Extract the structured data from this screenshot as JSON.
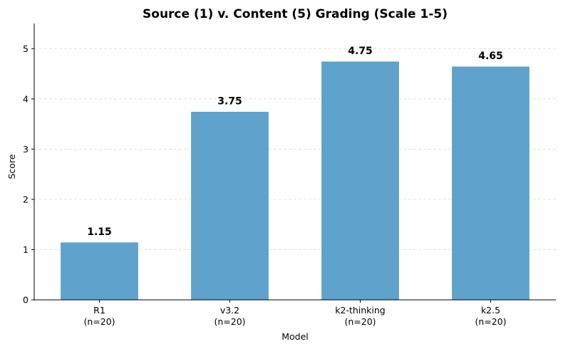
{
  "chart_data": {
    "type": "bar",
    "title": "Source (1) v. Content (5) Grading (Scale 1-5)",
    "xlabel": "Model",
    "ylabel": "Score",
    "categories": [
      "R1\n(n=20)",
      "v3.2\n(n=20)",
      "k2-thinking\n(n=20)",
      "k2.5\n(n=20)"
    ],
    "category_names": [
      "R1",
      "v3.2",
      "k2-thinking",
      "k2.5"
    ],
    "category_counts": [
      "(n=20)",
      "(n=20)",
      "(n=20)",
      "(n=20)"
    ],
    "values": [
      1.15,
      3.75,
      4.75,
      4.65
    ],
    "value_labels": [
      "1.15",
      "3.75",
      "4.75",
      "4.65"
    ],
    "ylim": [
      0,
      5.5
    ],
    "yticks": [
      0,
      1,
      2,
      3,
      4,
      5
    ],
    "ytick_labels": [
      "0",
      "1",
      "2",
      "3",
      "4",
      "5"
    ],
    "grid": "horizontal dashed",
    "bar_color": "#5fa2cc",
    "bar_edge_color": "#ffffff"
  }
}
